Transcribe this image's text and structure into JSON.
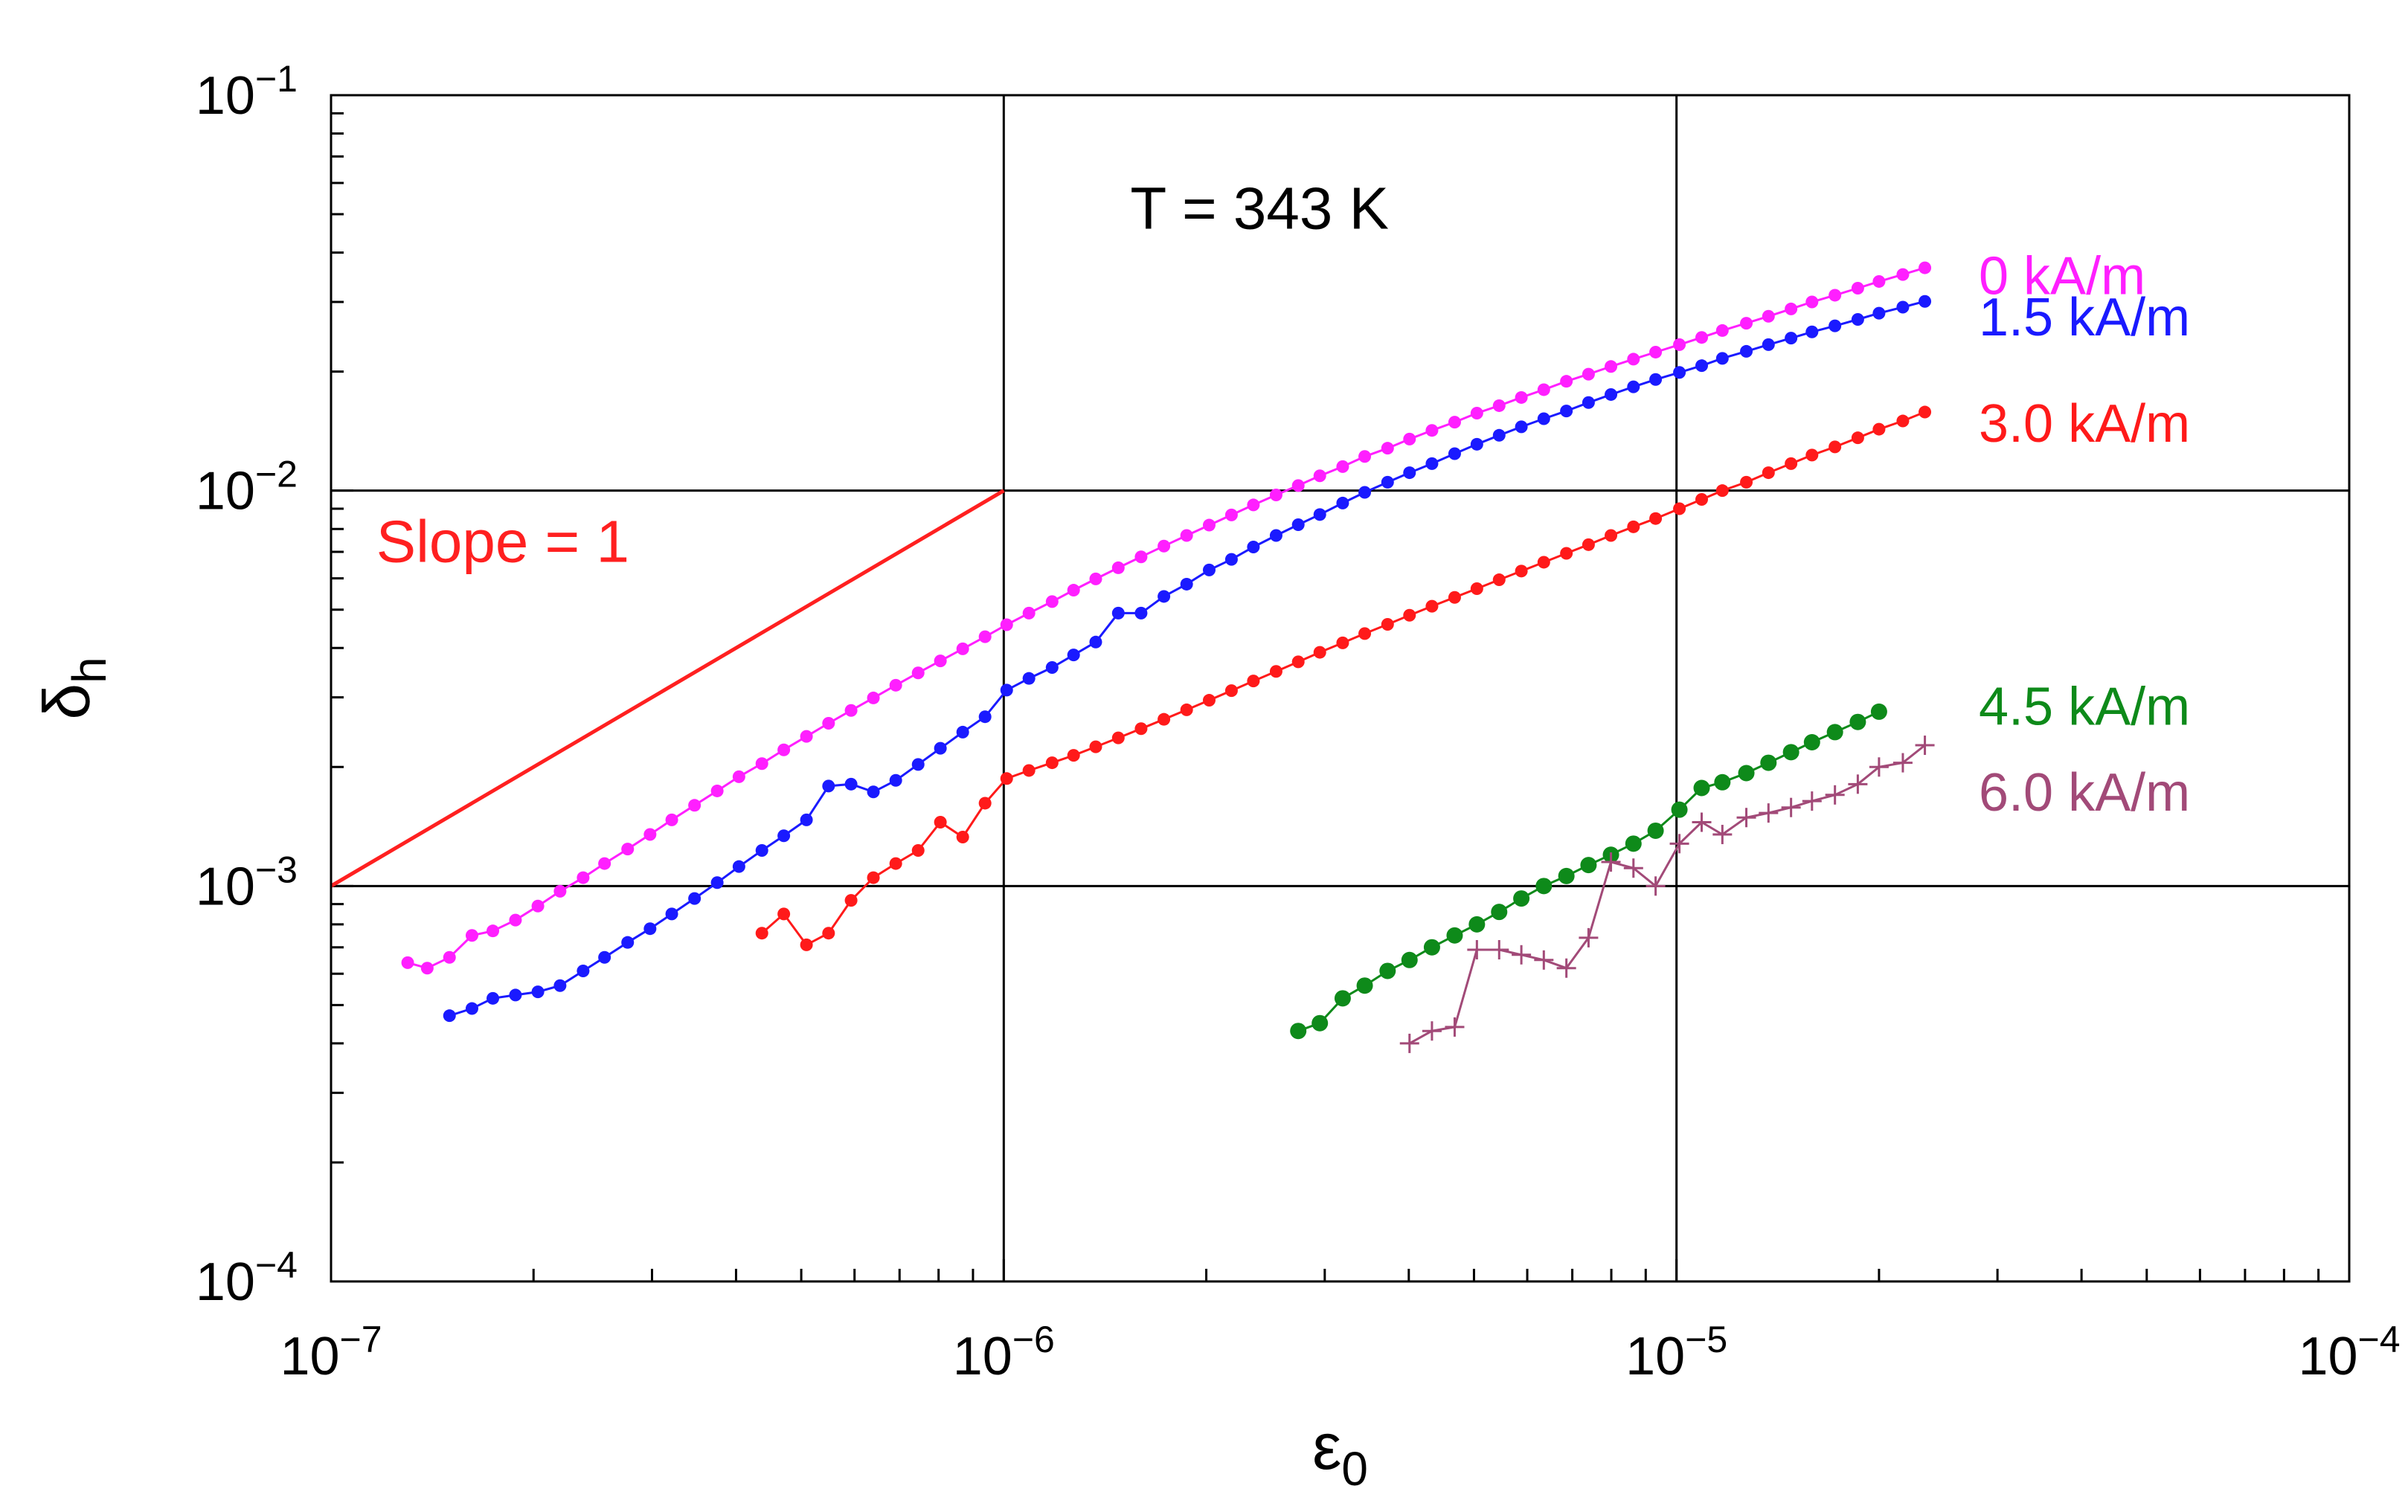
{
  "chart_data": {
    "type": "line",
    "xscale": "log",
    "yscale": "log",
    "xlim": [
      1e-07,
      0.0001
    ],
    "ylim": [
      0.0001,
      0.1
    ],
    "xlabel": {
      "base": "ε",
      "sub": "0"
    },
    "ylabel": {
      "base": "δ",
      "sub": "h"
    },
    "xticks": [
      {
        "value": 1e-07,
        "base": "10",
        "exp": "−7"
      },
      {
        "value": 1e-06,
        "base": "10",
        "exp": "−6"
      },
      {
        "value": 1e-05,
        "base": "10",
        "exp": "−5"
      },
      {
        "value": 0.0001,
        "base": "10",
        "exp": "−4"
      }
    ],
    "yticks": [
      {
        "value": 0.0001,
        "base": "10",
        "exp": "−4"
      },
      {
        "value": 0.001,
        "base": "10",
        "exp": "−3"
      },
      {
        "value": 0.01,
        "base": "10",
        "exp": "−2"
      },
      {
        "value": 0.1,
        "base": "10",
        "exp": "−1"
      }
    ],
    "grid": "major decades",
    "annotations": [
      {
        "text": "T = 343 K",
        "x": 2.4e-06,
        "y": 0.046
      },
      {
        "text": "Slope = 1",
        "x": 1.8e-07,
        "y": 0.0066,
        "color": "#ff2020"
      }
    ],
    "reference_line": {
      "label": "Slope = 1",
      "x": [
        1e-07,
        1e-06
      ],
      "y": [
        0.001,
        0.01
      ],
      "color": "#ff2020"
    },
    "series": [
      {
        "name": "0 kA/m",
        "color": "#ff1fff",
        "marker": "dot",
        "label_y": 0.035,
        "x": [
          1.3e-07,
          1.39e-07,
          1.5e-07,
          1.62e-07,
          1.74e-07,
          1.88e-07,
          2.03e-07,
          2.19e-07,
          2.37e-07,
          2.55e-07,
          2.76e-07,
          2.98e-07,
          3.21e-07,
          3.47e-07,
          3.75e-07,
          4.04e-07,
          4.37e-07,
          4.71e-07,
          5.09e-07,
          5.49e-07,
          5.93e-07,
          6.4e-07,
          6.91e-07,
          7.46e-07,
          8.05e-07,
          8.69e-07,
          9.38e-07,
          1.01e-06,
          1.09e-06,
          1.18e-06,
          1.27e-06,
          1.37e-06,
          1.48e-06,
          1.6e-06,
          1.73e-06,
          1.87e-06,
          2.02e-06,
          2.18e-06,
          2.35e-06,
          2.54e-06,
          2.74e-06,
          2.95e-06,
          3.19e-06,
          3.44e-06,
          3.72e-06,
          4.01e-06,
          4.33e-06,
          4.68e-06,
          5.05e-06,
          5.45e-06,
          5.88e-06,
          6.35e-06,
          6.86e-06,
          7.4e-06,
          7.99e-06,
          8.63e-06,
          9.31e-06,
          1.01e-05,
          1.09e-05,
          1.17e-05,
          1.27e-05,
          1.37e-05,
          1.48e-05,
          1.59e-05,
          1.72e-05,
          1.86e-05,
          2e-05,
          2.17e-05,
          2.34e-05
        ],
        "y": [
          0.00064,
          0.00062,
          0.00066,
          0.00075,
          0.00077,
          0.00082,
          0.00089,
          0.00097,
          0.00105,
          0.00114,
          0.00124,
          0.00135,
          0.00147,
          0.0016,
          0.00174,
          0.00189,
          0.00204,
          0.00221,
          0.00239,
          0.00258,
          0.00278,
          0.00299,
          0.00322,
          0.00346,
          0.00371,
          0.00398,
          0.00427,
          0.00458,
          0.0049,
          0.00524,
          0.0056,
          0.00598,
          0.00638,
          0.0068,
          0.00724,
          0.0077,
          0.00818,
          0.00868,
          0.0092,
          0.00975,
          0.0103,
          0.0109,
          0.0115,
          0.0122,
          0.0128,
          0.0135,
          0.0142,
          0.0149,
          0.0157,
          0.0164,
          0.0172,
          0.018,
          0.0189,
          0.0197,
          0.0206,
          0.0215,
          0.0224,
          0.0234,
          0.0244,
          0.0254,
          0.0265,
          0.0276,
          0.0288,
          0.03,
          0.0312,
          0.0325,
          0.0338,
          0.0352,
          0.0366
        ]
      },
      {
        "name": "1.5 kA/m",
        "color": "#1a1aff",
        "marker": "dot",
        "label_y": 0.0275,
        "x": [
          1.5e-07,
          1.62e-07,
          1.74e-07,
          1.88e-07,
          2.03e-07,
          2.19e-07,
          2.37e-07,
          2.55e-07,
          2.76e-07,
          2.98e-07,
          3.21e-07,
          3.47e-07,
          3.75e-07,
          4.04e-07,
          4.37e-07,
          4.71e-07,
          5.09e-07,
          5.49e-07,
          5.93e-07,
          6.4e-07,
          6.91e-07,
          7.46e-07,
          8.05e-07,
          8.69e-07,
          9.38e-07,
          1.01e-06,
          1.09e-06,
          1.18e-06,
          1.27e-06,
          1.37e-06,
          1.48e-06,
          1.6e-06,
          1.73e-06,
          1.87e-06,
          2.02e-06,
          2.18e-06,
          2.35e-06,
          2.54e-06,
          2.74e-06,
          2.95e-06,
          3.19e-06,
          3.44e-06,
          3.72e-06,
          4.01e-06,
          4.33e-06,
          4.68e-06,
          5.05e-06,
          5.45e-06,
          5.88e-06,
          6.35e-06,
          6.86e-06,
          7.4e-06,
          7.99e-06,
          8.63e-06,
          9.31e-06,
          1.01e-05,
          1.09e-05,
          1.17e-05,
          1.27e-05,
          1.37e-05,
          1.48e-05,
          1.59e-05,
          1.72e-05,
          1.86e-05,
          2e-05,
          2.17e-05,
          2.34e-05
        ],
        "y": [
          0.00047,
          0.00049,
          0.00052,
          0.00053,
          0.00054,
          0.00056,
          0.00061,
          0.00066,
          0.00072,
          0.00078,
          0.00085,
          0.00093,
          0.00102,
          0.00112,
          0.00123,
          0.00134,
          0.00147,
          0.00179,
          0.00181,
          0.00173,
          0.00185,
          0.00203,
          0.00223,
          0.00245,
          0.00268,
          0.00313,
          0.00335,
          0.00357,
          0.00384,
          0.00414,
          0.0049,
          0.0049,
          0.0054,
          0.0058,
          0.0063,
          0.0067,
          0.0072,
          0.0077,
          0.0082,
          0.0087,
          0.0093,
          0.0099,
          0.0105,
          0.0111,
          0.0117,
          0.0124,
          0.0131,
          0.0138,
          0.0145,
          0.0152,
          0.0159,
          0.0167,
          0.0175,
          0.0183,
          0.0191,
          0.0199,
          0.0207,
          0.0216,
          0.0225,
          0.0234,
          0.0243,
          0.0252,
          0.0261,
          0.0271,
          0.0281,
          0.0291,
          0.0301
        ]
      },
      {
        "name": "3.0 kA/m",
        "color": "#ff1a1a",
        "marker": "dot",
        "label_y": 0.0148,
        "x": [
          4.37e-07,
          4.71e-07,
          5.09e-07,
          5.49e-07,
          5.93e-07,
          6.4e-07,
          6.91e-07,
          7.46e-07,
          8.05e-07,
          8.69e-07,
          9.38e-07,
          1.01e-06,
          1.09e-06,
          1.18e-06,
          1.27e-06,
          1.37e-06,
          1.48e-06,
          1.6e-06,
          1.73e-06,
          1.87e-06,
          2.02e-06,
          2.18e-06,
          2.35e-06,
          2.54e-06,
          2.74e-06,
          2.95e-06,
          3.19e-06,
          3.44e-06,
          3.72e-06,
          4.01e-06,
          4.33e-06,
          4.68e-06,
          5.05e-06,
          5.45e-06,
          5.88e-06,
          6.35e-06,
          6.86e-06,
          7.4e-06,
          7.99e-06,
          8.63e-06,
          9.31e-06,
          1.01e-05,
          1.09e-05,
          1.17e-05,
          1.27e-05,
          1.37e-05,
          1.48e-05,
          1.59e-05,
          1.72e-05,
          1.86e-05,
          2e-05,
          2.17e-05,
          2.34e-05
        ],
        "y": [
          0.00076,
          0.00085,
          0.00071,
          0.00076,
          0.00092,
          0.00105,
          0.00114,
          0.00123,
          0.00145,
          0.00133,
          0.00162,
          0.00187,
          0.00196,
          0.00205,
          0.00214,
          0.00225,
          0.00237,
          0.0025,
          0.00264,
          0.00279,
          0.00295,
          0.00312,
          0.0033,
          0.00349,
          0.00369,
          0.0039,
          0.00412,
          0.00435,
          0.00459,
          0.00484,
          0.0051,
          0.00537,
          0.00565,
          0.00595,
          0.00626,
          0.00659,
          0.00694,
          0.0073,
          0.0077,
          0.0081,
          0.0085,
          0.009,
          0.0095,
          0.01,
          0.0105,
          0.0111,
          0.0117,
          0.0123,
          0.0129,
          0.0136,
          0.0143,
          0.015,
          0.0158
        ]
      },
      {
        "name": "4.5 kA/m",
        "color": "#0e8a1a",
        "marker": "bigdot",
        "label_y": 0.00285,
        "x": [
          2.74e-06,
          2.95e-06,
          3.19e-06,
          3.44e-06,
          3.72e-06,
          4.01e-06,
          4.33e-06,
          4.68e-06,
          5.05e-06,
          5.45e-06,
          5.88e-06,
          6.35e-06,
          6.86e-06,
          7.4e-06,
          7.99e-06,
          8.63e-06,
          9.31e-06,
          1.01e-05,
          1.09e-05,
          1.17e-05,
          1.27e-05,
          1.37e-05,
          1.48e-05,
          1.59e-05,
          1.72e-05,
          1.86e-05,
          2e-05
        ],
        "y": [
          0.00043,
          0.00045,
          0.00052,
          0.00056,
          0.00061,
          0.00065,
          0.0007,
          0.00075,
          0.0008,
          0.00086,
          0.00093,
          0.001,
          0.00106,
          0.00113,
          0.0012,
          0.00128,
          0.00138,
          0.00156,
          0.00177,
          0.00183,
          0.00193,
          0.00205,
          0.00218,
          0.00231,
          0.00245,
          0.0026,
          0.00276
        ]
      },
      {
        "name": "6.0 kA/m",
        "color": "#a24a78",
        "marker": "plus",
        "label_y": 0.00173,
        "x": [
          4.01e-06,
          4.33e-06,
          4.68e-06,
          5.05e-06,
          5.45e-06,
          5.88e-06,
          6.35e-06,
          6.86e-06,
          7.4e-06,
          7.99e-06,
          8.63e-06,
          9.31e-06,
          1.01e-05,
          1.09e-05,
          1.17e-05,
          1.27e-05,
          1.37e-05,
          1.48e-05,
          1.59e-05,
          1.72e-05,
          1.86e-05,
          2e-05,
          2.17e-05,
          2.34e-05
        ],
        "y": [
          0.0004,
          0.00043,
          0.00044,
          0.00069,
          0.00069,
          0.00067,
          0.00065,
          0.00062,
          0.00074,
          0.00115,
          0.00111,
          0.001,
          0.00128,
          0.00145,
          0.00135,
          0.00149,
          0.00153,
          0.00158,
          0.00164,
          0.0017,
          0.00181,
          0.002,
          0.00205,
          0.00227
        ]
      }
    ]
  }
}
